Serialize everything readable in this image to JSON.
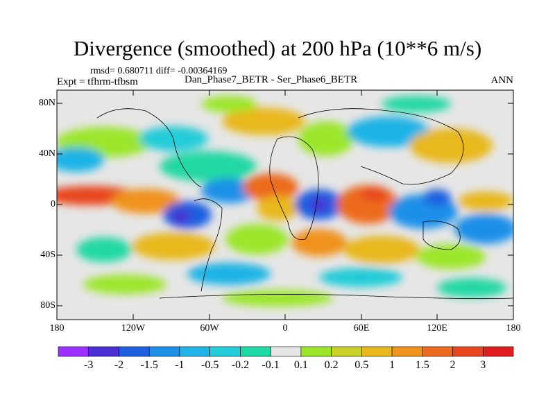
{
  "title": "Divergence (smoothed) at 200 hPa (10**6 m/s)",
  "stats": "rmsd= 0.680711 diff= -0.00364169",
  "expt": "Expt = tfhrm-tfbsm",
  "difference_label": "Dan_Phase7_BETR - Ser_Phase6_BETR",
  "season": "ANN",
  "lat_ticks": [
    "80N",
    "40N",
    "0",
    "40S",
    "80S"
  ],
  "lon_ticks": [
    "180",
    "120W",
    "60W",
    "0",
    "60E",
    "120E",
    "180"
  ],
  "colorbar": {
    "labels": [
      "-3",
      "-2",
      "-1.5",
      "-1",
      "-0.5",
      "-0.2",
      "-0.1",
      "0.1",
      "0.2",
      "0.5",
      "1",
      "1.5",
      "2",
      "3"
    ],
    "colors": [
      "#9b30ff",
      "#4a2fd4",
      "#1f5fe0",
      "#1e90e8",
      "#1fb3e6",
      "#22ccd8",
      "#20d8a4",
      "#e6e6e6",
      "#9be62a",
      "#c8d02a",
      "#e8b81e",
      "#f0921e",
      "#ec6a1e",
      "#e8461e",
      "#e01e1e"
    ]
  }
}
